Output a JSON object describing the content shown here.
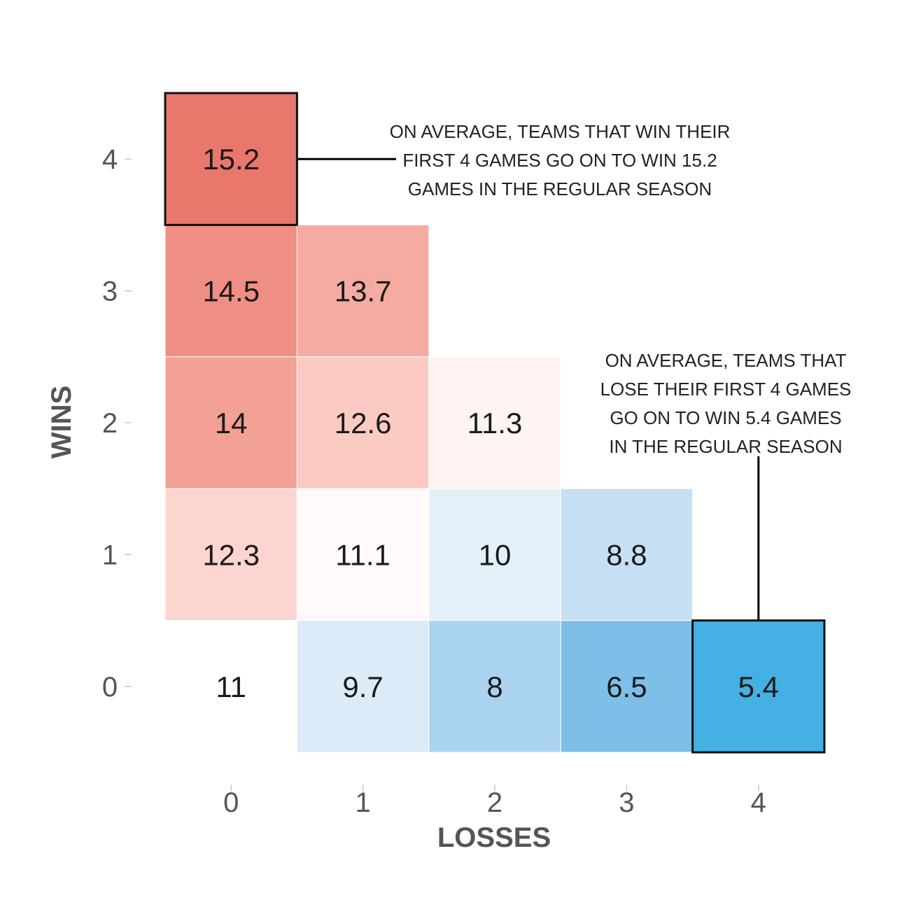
{
  "chart_data": {
    "type": "heatmap",
    "title": "",
    "xlabel": "LOSSES",
    "ylabel": "WINS",
    "x_categories": [
      "0",
      "1",
      "2",
      "3",
      "4"
    ],
    "y_categories": [
      "0",
      "1",
      "2",
      "3",
      "4"
    ],
    "cells": [
      {
        "wins": 4,
        "losses": 0,
        "value": 15.2,
        "label": "15.2",
        "color": "#e9776c",
        "highlight": true
      },
      {
        "wins": 3,
        "losses": 0,
        "value": 14.5,
        "label": "14.5",
        "color": "#ef8e84"
      },
      {
        "wins": 3,
        "losses": 1,
        "value": 13.7,
        "label": "13.7",
        "color": "#f5aba1"
      },
      {
        "wins": 2,
        "losses": 0,
        "value": 14,
        "label": "14",
        "color": "#f3a095"
      },
      {
        "wins": 2,
        "losses": 1,
        "value": 12.6,
        "label": "12.6",
        "color": "#fbcac3"
      },
      {
        "wins": 2,
        "losses": 2,
        "value": 11.3,
        "label": "11.3",
        "color": "#fff4f2"
      },
      {
        "wins": 1,
        "losses": 0,
        "value": 12.3,
        "label": "12.3",
        "color": "#fdd5d0"
      },
      {
        "wins": 1,
        "losses": 1,
        "value": 11.1,
        "label": "11.1",
        "color": "#fff9f9"
      },
      {
        "wins": 1,
        "losses": 2,
        "value": 10,
        "label": "10",
        "color": "#e4f0f9"
      },
      {
        "wins": 1,
        "losses": 3,
        "value": 8.8,
        "label": "8.8",
        "color": "#c5e0f4"
      },
      {
        "wins": 0,
        "losses": 0,
        "value": 11,
        "label": "11",
        "color": "#ffffff"
      },
      {
        "wins": 0,
        "losses": 1,
        "value": 9.7,
        "label": "9.7",
        "color": "#dcebf8"
      },
      {
        "wins": 0,
        "losses": 2,
        "value": 8,
        "label": "8",
        "color": "#aad3ef"
      },
      {
        "wins": 0,
        "losses": 3,
        "value": 6.5,
        "label": "6.5",
        "color": "#7dbfe9"
      },
      {
        "wins": 0,
        "losses": 4,
        "value": 5.4,
        "label": "5.4",
        "color": "#44b0e4",
        "highlight": true
      }
    ],
    "annotations": [
      {
        "target": {
          "wins": 4,
          "losses": 0
        },
        "lines": [
          "ON AVERAGE, TEAMS THAT WIN THEIR",
          "FIRST 4 GAMES GO ON TO WIN 15.2",
          "GAMES IN THE REGULAR SEASON"
        ]
      },
      {
        "target": {
          "wins": 0,
          "losses": 4
        },
        "lines": [
          "ON AVERAGE, TEAMS THAT",
          "LOSE THEIR FIRST 4 GAMES",
          "GO ON TO WIN 5.4 GAMES",
          "IN THE REGULAR SEASON"
        ]
      }
    ],
    "legend": "none",
    "grid": false
  }
}
